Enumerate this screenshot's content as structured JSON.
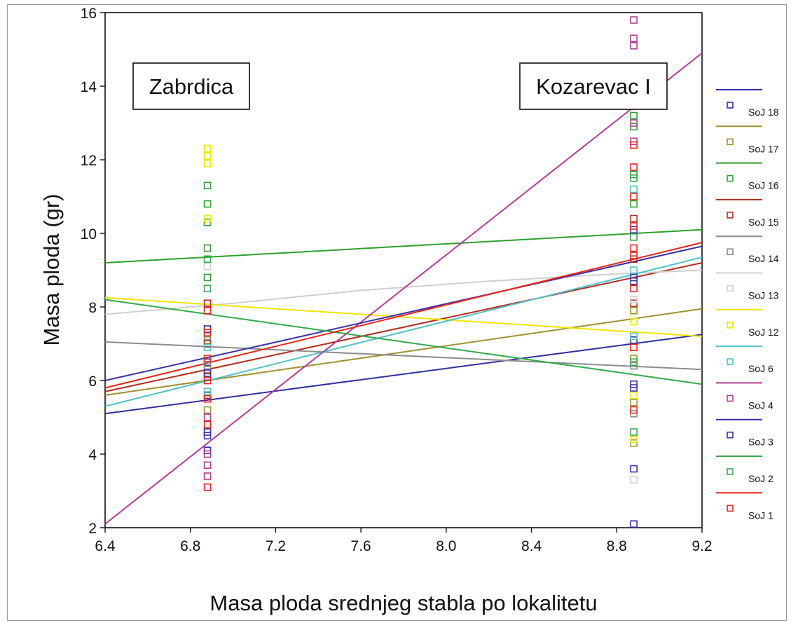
{
  "chart_data": {
    "type": "scatter",
    "title": "",
    "xlabel": "Masa ploda srednjeg stabla po lokalitetu",
    "ylabel": "Masa ploda (gr)",
    "xlim": [
      6.4,
      9.2
    ],
    "ylim": [
      2,
      16
    ],
    "xticks": [
      "6.4",
      "6.8",
      "7.2",
      "7.6",
      "8.0",
      "8.4",
      "8.8",
      "9.2"
    ],
    "yticks": [
      "2",
      "4",
      "6",
      "8",
      "10",
      "12",
      "14",
      "16"
    ],
    "legend_position": "right",
    "grid": false,
    "annotations": [
      {
        "text": "Zabrdica",
        "x": 6.8
      },
      {
        "text": "Kozarevac I",
        "x": 8.8
      }
    ],
    "series": [
      {
        "name": "SoJ 18",
        "color": "#2f2f9e",
        "line": [
          [
            6.4,
            5.1
          ],
          [
            9.2,
            7.25
          ]
        ],
        "points": [
          [
            6.88,
            4.1
          ],
          [
            6.88,
            4.6
          ],
          [
            6.88,
            5.6
          ],
          [
            6.88,
            6.5
          ],
          [
            6.88,
            7.4
          ],
          [
            8.88,
            2.1
          ],
          [
            8.88,
            3.6
          ],
          [
            8.88,
            5.9
          ],
          [
            8.88,
            7.1
          ],
          [
            8.88,
            8.8
          ]
        ]
      },
      {
        "name": "SoJ 17",
        "color": "#a09030",
        "line": [
          [
            6.4,
            5.6
          ],
          [
            9.2,
            7.95
          ]
        ],
        "points": [
          [
            6.88,
            5.2
          ],
          [
            6.88,
            6.3
          ],
          [
            6.88,
            7.1
          ],
          [
            8.88,
            4.3
          ],
          [
            8.88,
            5.4
          ],
          [
            8.88,
            6.6
          ],
          [
            8.88,
            7.9
          ]
        ]
      },
      {
        "name": "SoJ 16",
        "color": "#2ca02c",
        "line": [
          [
            6.4,
            9.2
          ],
          [
            9.2,
            10.1
          ]
        ],
        "points": [
          [
            6.88,
            8.8
          ],
          [
            6.88,
            9.6
          ],
          [
            6.88,
            10.3
          ],
          [
            6.88,
            10.8
          ],
          [
            6.88,
            11.3
          ],
          [
            8.88,
            9.9
          ],
          [
            8.88,
            10.8
          ],
          [
            8.88,
            11.6
          ],
          [
            8.88,
            12.9
          ],
          [
            8.88,
            13.2
          ]
        ]
      },
      {
        "name": "SoJ 15",
        "color": "#b22d1e",
        "line": [
          [
            6.4,
            5.7
          ],
          [
            9.2,
            9.2
          ]
        ],
        "points": [
          [
            6.88,
            6.1
          ],
          [
            6.88,
            7.0
          ],
          [
            6.88,
            8.1
          ],
          [
            8.88,
            8.1
          ],
          [
            8.88,
            9.3
          ],
          [
            8.88,
            10.4
          ]
        ]
      },
      {
        "name": "SoJ 14",
        "color": "#8c8c8c",
        "line": [
          [
            6.4,
            7.05
          ],
          [
            9.2,
            6.3
          ]
        ],
        "points": [
          [
            6.88,
            6.4
          ],
          [
            6.88,
            7.2
          ],
          [
            8.88,
            5.1
          ],
          [
            8.88,
            6.4
          ]
        ]
      },
      {
        "name": "SoJ 13",
        "color": "#cfcfcf",
        "curve": [
          [
            6.4,
            7.8
          ],
          [
            7.0,
            8.1
          ],
          [
            7.6,
            8.45
          ],
          [
            8.2,
            8.7
          ],
          [
            8.8,
            8.9
          ],
          [
            9.2,
            9.0
          ]
        ],
        "points": [
          [
            6.88,
            7.9
          ],
          [
            6.88,
            9.1
          ],
          [
            8.88,
            3.3
          ],
          [
            8.88,
            8.2
          ]
        ]
      },
      {
        "name": "SoJ 12",
        "color": "#f2e500",
        "line": [
          [
            6.4,
            8.25
          ],
          [
            9.2,
            7.2
          ]
        ],
        "points": [
          [
            6.88,
            10.4
          ],
          [
            6.88,
            11.9
          ],
          [
            6.88,
            12.1
          ],
          [
            6.88,
            12.3
          ],
          [
            8.88,
            4.4
          ],
          [
            8.88,
            5.6
          ],
          [
            8.88,
            7.6
          ]
        ]
      },
      {
        "name": "SoJ 6",
        "color": "#50c0c8",
        "line": [
          [
            6.4,
            5.3
          ],
          [
            9.2,
            9.35
          ]
        ],
        "points": [
          [
            6.88,
            5.7
          ],
          [
            6.88,
            6.9
          ],
          [
            8.88,
            7.2
          ],
          [
            8.88,
            9.0
          ],
          [
            8.88,
            11.2
          ]
        ]
      },
      {
        "name": "SoJ 4",
        "color": "#b03c96",
        "line": [
          [
            6.4,
            2.1
          ],
          [
            9.2,
            14.9
          ]
        ],
        "points": [
          [
            6.88,
            3.4
          ],
          [
            6.88,
            3.7
          ],
          [
            6.88,
            4.0
          ],
          [
            6.88,
            5.0
          ],
          [
            8.88,
            12.5
          ],
          [
            8.88,
            13.0
          ],
          [
            8.88,
            15.1
          ],
          [
            8.88,
            15.3
          ],
          [
            8.88,
            15.8
          ]
        ]
      },
      {
        "name": "SoJ 3",
        "color": "#3a32a8",
        "line": [
          [
            6.4,
            6.0
          ],
          [
            9.2,
            9.65
          ]
        ],
        "points": [
          [
            6.88,
            4.5
          ],
          [
            6.88,
            6.2
          ],
          [
            8.88,
            5.8
          ],
          [
            8.88,
            8.7
          ],
          [
            8.88,
            10.1
          ]
        ]
      },
      {
        "name": "SoJ 2",
        "color": "#34a84a",
        "line": [
          [
            6.4,
            8.2
          ],
          [
            9.2,
            5.9
          ]
        ],
        "points": [
          [
            6.88,
            8.5
          ],
          [
            6.88,
            9.3
          ],
          [
            8.88,
            4.6
          ],
          [
            8.88,
            6.5
          ],
          [
            8.88,
            11.5
          ]
        ]
      },
      {
        "name": "SoJ 1",
        "color": "#e8261c",
        "line": [
          [
            6.4,
            5.8
          ],
          [
            9.2,
            9.75
          ]
        ],
        "points": [
          [
            6.88,
            3.1
          ],
          [
            6.88,
            4.8
          ],
          [
            6.88,
            5.5
          ],
          [
            6.88,
            6.0
          ],
          [
            6.88,
            6.6
          ],
          [
            6.88,
            7.3
          ],
          [
            6.88,
            7.9
          ],
          [
            8.88,
            5.2
          ],
          [
            8.88,
            6.9
          ],
          [
            8.88,
            8.5
          ],
          [
            8.88,
            9.4
          ],
          [
            8.88,
            9.6
          ],
          [
            8.88,
            10.2
          ],
          [
            8.88,
            11.0
          ],
          [
            8.88,
            11.8
          ],
          [
            8.88,
            12.4
          ]
        ]
      }
    ]
  }
}
